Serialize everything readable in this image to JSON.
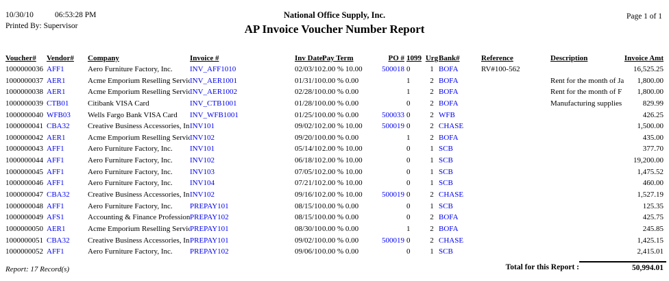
{
  "colors": {
    "link_blue": "#0000EE",
    "text_black": "#000000"
  },
  "page_header": {
    "date": "10/30/10",
    "time": "06:53:28 PM",
    "printed_by": "Printed By: Supervisor",
    "company_name": "National Office Supply, Inc.",
    "report_title": "AP Invoice Voucher Number Report",
    "page_label": "Page 1 of 1"
  },
  "table": {
    "headers": {
      "voucher": "Voucher#",
      "vendor": "Vendor#",
      "company": "Company",
      "invoice": "Invoice #",
      "inv_date": "Inv Date",
      "pay_term": "Pay Term",
      "po": "PO #",
      "f1099": "1099",
      "urg": "Urg",
      "bank": "Bank#",
      "reference": "Reference",
      "description": "Description",
      "amount": "Invoice Amt"
    },
    "rows": [
      {
        "voucher": "1000000036",
        "vendor": "AFF1",
        "company": "Aero Furniture Factory, Inc.",
        "invoice": "INV_AFF1010",
        "inv_date": "02/03/10",
        "pay_term": "2.00 % 10.00",
        "po": "500018",
        "f1099": "0",
        "urg": "1",
        "bank": "BOFA",
        "reference": "RV#100-562",
        "description": "",
        "amount": "16,525.25"
      },
      {
        "voucher": "1000000037",
        "vendor": "AER1",
        "company": "Acme Emporium Reselling Servic",
        "invoice": "INV_AER1001",
        "inv_date": "01/31/10",
        "pay_term": "0.00 % 0.00",
        "po": "",
        "f1099": "1",
        "urg": "2",
        "bank": "BOFA",
        "reference": "",
        "description": "Rent for the month of Ja",
        "amount": "1,800.00"
      },
      {
        "voucher": "1000000038",
        "vendor": "AER1",
        "company": "Acme Emporium Reselling Servic",
        "invoice": "INV_AER1002",
        "inv_date": "02/28/10",
        "pay_term": "0.00 % 0.00",
        "po": "",
        "f1099": "1",
        "urg": "2",
        "bank": "BOFA",
        "reference": "",
        "description": "Rent for the month of F",
        "amount": "1,800.00"
      },
      {
        "voucher": "1000000039",
        "vendor": "CTB01",
        "company": "Citibank VISA Card",
        "invoice": "INV_CTB1001",
        "inv_date": "01/28/10",
        "pay_term": "0.00 % 0.00",
        "po": "",
        "f1099": "0",
        "urg": "2",
        "bank": "BOFA",
        "reference": "",
        "description": "Manufacturing supplies",
        "amount": "829.99"
      },
      {
        "voucher": "1000000040",
        "vendor": "WFB03",
        "company": "Wells Fargo Bank VISA Card",
        "invoice": "INV_WFB1001",
        "inv_date": "01/25/10",
        "pay_term": "0.00 % 0.00",
        "po": "500033",
        "f1099": "0",
        "urg": "2",
        "bank": "WFB",
        "reference": "",
        "description": "",
        "amount": "426.25"
      },
      {
        "voucher": "1000000041",
        "vendor": "CBA32",
        "company": "Creative Business Accessories, In",
        "invoice": "INV101",
        "inv_date": "09/02/10",
        "pay_term": "2.00 % 10.00",
        "po": "500019",
        "f1099": "0",
        "urg": "2",
        "bank": "CHASE",
        "reference": "",
        "description": "",
        "amount": "1,500.00"
      },
      {
        "voucher": "1000000042",
        "vendor": "AER1",
        "company": "Acme Emporium Reselling Servic",
        "invoice": "INV102",
        "inv_date": "09/20/10",
        "pay_term": "0.00 % 0.00",
        "po": "",
        "f1099": "1",
        "urg": "2",
        "bank": "BOFA",
        "reference": "",
        "description": "",
        "amount": "435.00"
      },
      {
        "voucher": "1000000043",
        "vendor": "AFF1",
        "company": "Aero Furniture Factory, Inc.",
        "invoice": "INV101",
        "inv_date": "05/14/10",
        "pay_term": "2.00 % 10.00",
        "po": "",
        "f1099": "0",
        "urg": "1",
        "bank": "SCB",
        "reference": "",
        "description": "",
        "amount": "377.70"
      },
      {
        "voucher": "1000000044",
        "vendor": "AFF1",
        "company": "Aero Furniture Factory, Inc.",
        "invoice": "INV102",
        "inv_date": "06/18/10",
        "pay_term": "2.00 % 10.00",
        "po": "",
        "f1099": "0",
        "urg": "1",
        "bank": "SCB",
        "reference": "",
        "description": "",
        "amount": "19,200.00"
      },
      {
        "voucher": "1000000045",
        "vendor": "AFF1",
        "company": "Aero Furniture Factory, Inc.",
        "invoice": "INV103",
        "inv_date": "07/05/10",
        "pay_term": "2.00 % 10.00",
        "po": "",
        "f1099": "0",
        "urg": "1",
        "bank": "SCB",
        "reference": "",
        "description": "",
        "amount": "1,475.52"
      },
      {
        "voucher": "1000000046",
        "vendor": "AFF1",
        "company": "Aero Furniture Factory, Inc.",
        "invoice": "INV104",
        "inv_date": "07/21/10",
        "pay_term": "2.00 % 10.00",
        "po": "",
        "f1099": "0",
        "urg": "1",
        "bank": "SCB",
        "reference": "",
        "description": "",
        "amount": "460.00"
      },
      {
        "voucher": "1000000047",
        "vendor": "CBA32",
        "company": "Creative Business Accessories, In",
        "invoice": "INV102",
        "inv_date": "09/16/10",
        "pay_term": "2.00 % 10.00",
        "po": "500019",
        "f1099": "0",
        "urg": "2",
        "bank": "CHASE",
        "reference": "",
        "description": "",
        "amount": "1,527.19"
      },
      {
        "voucher": "1000000048",
        "vendor": "AFF1",
        "company": "Aero Furniture Factory, Inc.",
        "invoice": "PREPAY101",
        "inv_date": "08/15/10",
        "pay_term": "0.00 % 0.00",
        "po": "",
        "f1099": "0",
        "urg": "1",
        "bank": "SCB",
        "reference": "",
        "description": "",
        "amount": "125.35"
      },
      {
        "voucher": "1000000049",
        "vendor": "AFS1",
        "company": "Accounting & Finance Profession",
        "invoice": "PREPAY102",
        "inv_date": "08/15/10",
        "pay_term": "0.00 % 0.00",
        "po": "",
        "f1099": "0",
        "urg": "2",
        "bank": "BOFA",
        "reference": "",
        "description": "",
        "amount": "425.75"
      },
      {
        "voucher": "1000000050",
        "vendor": "AER1",
        "company": "Acme Emporium Reselling Servic",
        "invoice": "PREPAY101",
        "inv_date": "08/30/10",
        "pay_term": "0.00 % 0.00",
        "po": "",
        "f1099": "1",
        "urg": "2",
        "bank": "BOFA",
        "reference": "",
        "description": "",
        "amount": "245.85"
      },
      {
        "voucher": "1000000051",
        "vendor": "CBA32",
        "company": "Creative Business Accessories, In",
        "invoice": "PREPAY101",
        "inv_date": "09/02/10",
        "pay_term": "0.00 % 0.00",
        "po": "500019",
        "f1099": "0",
        "urg": "2",
        "bank": "CHASE",
        "reference": "",
        "description": "",
        "amount": "1,425.15"
      },
      {
        "voucher": "1000000052",
        "vendor": "AFF1",
        "company": "Aero Furniture Factory, Inc.",
        "invoice": "PREPAY102",
        "inv_date": "09/06/10",
        "pay_term": "0.00 % 0.00",
        "po": "",
        "f1099": "0",
        "urg": "1",
        "bank": "SCB",
        "reference": "",
        "description": "",
        "amount": "2,415.01"
      }
    ]
  },
  "footer": {
    "record_count": "Report: 17 Record(s)",
    "total_label": "Total for this Report :",
    "total_amount": "50,994.01"
  }
}
